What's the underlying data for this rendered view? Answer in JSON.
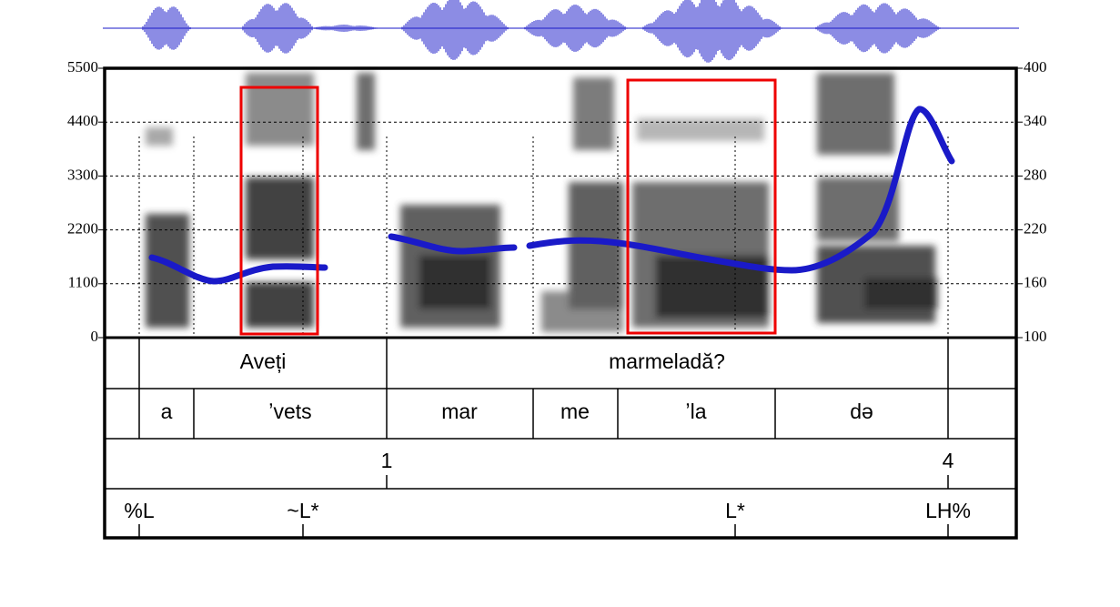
{
  "left_axis": {
    "range": [
      0,
      5500
    ],
    "ticks": [
      0,
      1100,
      2200,
      3300,
      4400,
      5500
    ]
  },
  "right_axis": {
    "range": [
      100,
      400
    ],
    "ticks": [
      100,
      160,
      220,
      280,
      340,
      400
    ]
  },
  "words": [
    "Aveți",
    "marmeladă?"
  ],
  "syllables": [
    "a",
    "ʼvets",
    "mar",
    "me",
    "ʼla",
    "də"
  ],
  "break_indices": [
    "1",
    "4"
  ],
  "tones": [
    "%L",
    "~L*",
    "L*",
    "LH%"
  ]
}
